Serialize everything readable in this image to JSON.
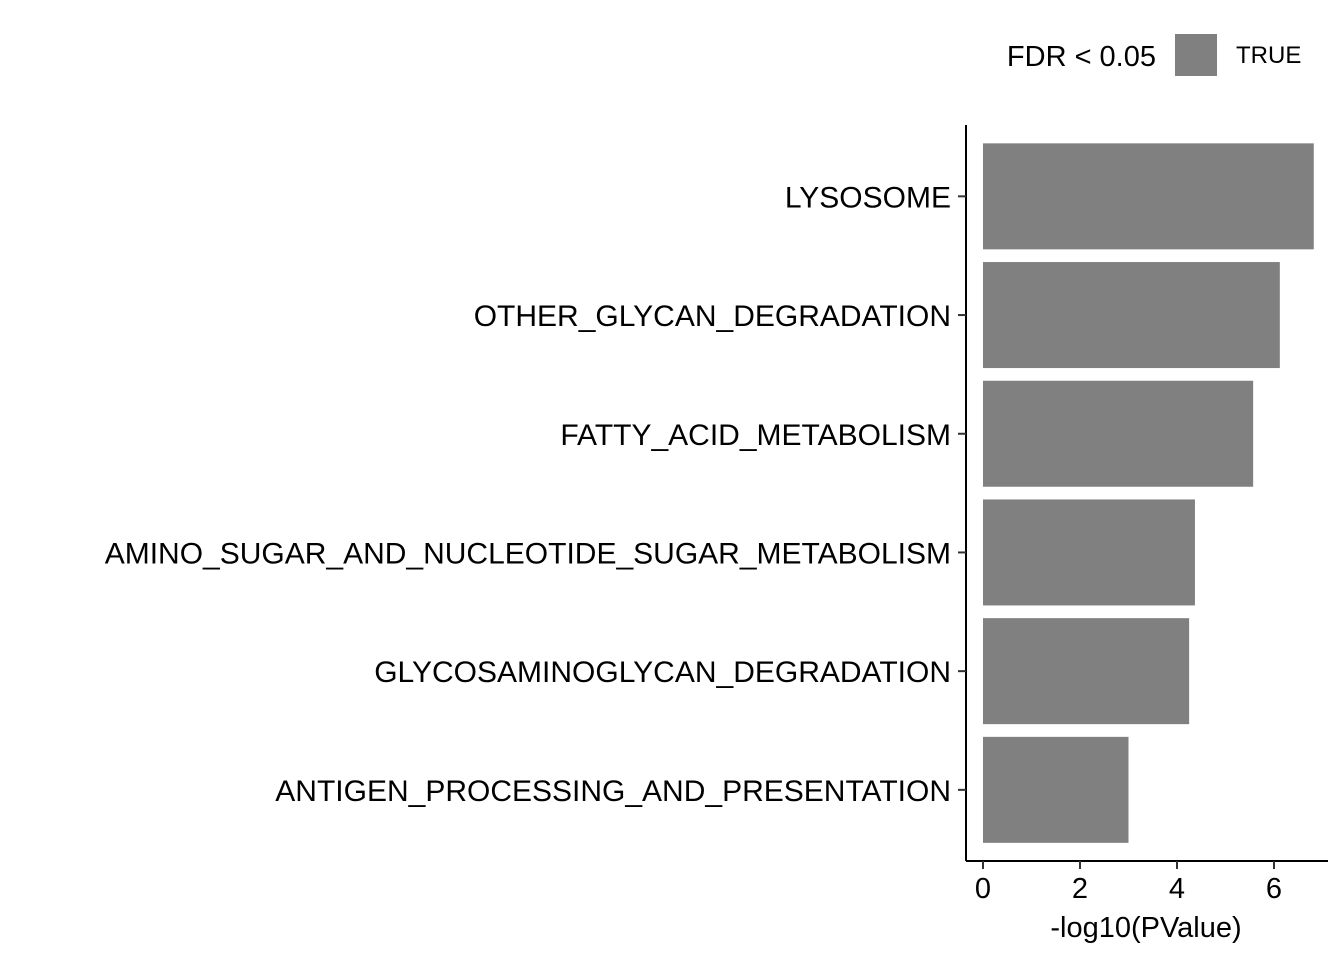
{
  "chart_data": {
    "type": "bar",
    "orientation": "horizontal",
    "categories": [
      "LYSOSOME",
      "OTHER_GLYCAN_DEGRADATION",
      "FATTY_ACID_METABOLISM",
      "AMINO_SUGAR_AND_NUCLEOTIDE_SUGAR_METABOLISM",
      "GLYCOSAMINOGLYCAN_DEGRADATION",
      "ANTIGEN_PROCESSING_AND_PRESENTATION"
    ],
    "values": [
      6.82,
      6.12,
      5.57,
      4.37,
      4.25,
      3.0
    ],
    "xlabel": "-log10(PValue)",
    "ylabel": "",
    "title": "",
    "xlim": [
      0,
      7
    ],
    "xticks": [
      "0",
      "2",
      "4",
      "6"
    ],
    "grid": false,
    "bar_color": "#808080",
    "legend": {
      "title": "FDR < 0.05",
      "placement": "top-right",
      "entries": [
        {
          "label": "TRUE",
          "color": "#808080"
        }
      ]
    }
  }
}
